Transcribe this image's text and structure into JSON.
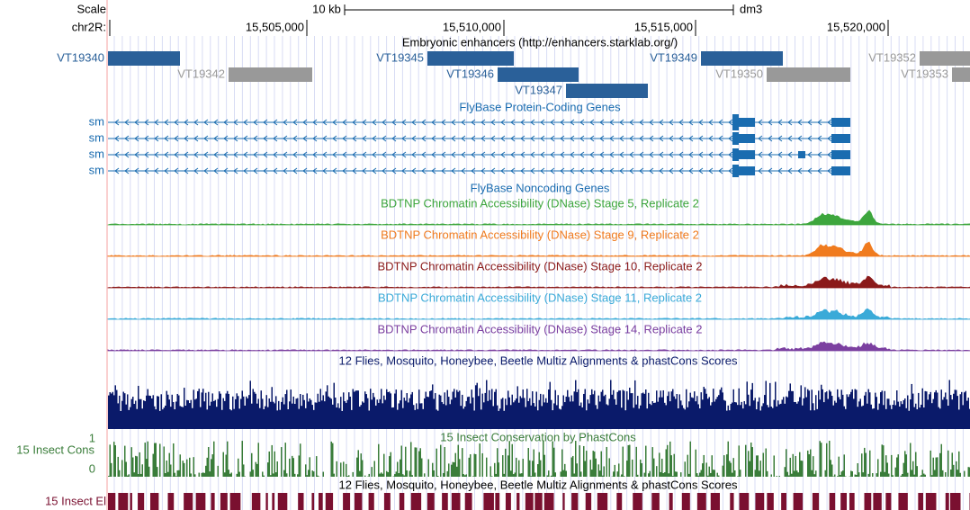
{
  "ruler": {
    "scale_label": "Scale",
    "chrom_label": "chr2R:",
    "scale_bar_label": "10 kb",
    "assembly": "dm3",
    "positions": [
      "15,505,000",
      "15,510,000",
      "15,515,000",
      "15,520,000"
    ]
  },
  "enhancers": {
    "title": "Embryonic enhancers (http://enhancers.starklab.org/)",
    "items": [
      {
        "label": "VT19340",
        "status": "blue"
      },
      {
        "label": "VT19342",
        "status": "gray"
      },
      {
        "label": "VT19345",
        "status": "blue"
      },
      {
        "label": "VT19346",
        "status": "blue"
      },
      {
        "label": "VT19347",
        "status": "blue"
      },
      {
        "label": "VT19349",
        "status": "blue"
      },
      {
        "label": "VT19350",
        "status": "gray"
      },
      {
        "label": "VT19352",
        "status": "gray"
      },
      {
        "label": "VT19353",
        "status": "gray"
      }
    ]
  },
  "coding_genes": {
    "title": "FlyBase Protein-Coding Genes",
    "transcripts": [
      "sm",
      "sm",
      "sm",
      "sm"
    ]
  },
  "noncoding_genes": {
    "title": "FlyBase Noncoding Genes"
  },
  "dnase_tracks": [
    {
      "title": "BDTNP Chromatin Accessibility (DNase) Stage 5, Replicate 2",
      "color": "#3da63d"
    },
    {
      "title": "BDTNP Chromatin Accessibility (DNase) Stage 9, Replicate 2",
      "color": "#f07b1e"
    },
    {
      "title": "BDTNP Chromatin Accessibility (DNase) Stage 10, Replicate 2",
      "color": "#8b1a1a"
    },
    {
      "title": "BDTNP Chromatin Accessibility (DNase) Stage 11, Replicate 2",
      "color": "#3aaad8"
    },
    {
      "title": "BDTNP Chromatin Accessibility (DNase) Stage 14, Replicate 2",
      "color": "#7b3fa0"
    }
  ],
  "multiz": {
    "title": "12 Flies, Mosquito, Honeybee, Beetle Multiz Alignments & phastCons Scores"
  },
  "conservation": {
    "title": "15 Insect Conservation by PhastCons",
    "side_label": "15 Insect Cons",
    "axis_max": "1",
    "axis_min": "0"
  },
  "elements": {
    "title": "12 Flies, Mosquito, Honeybee, Beetle Multiz Alignments & phastCons Scores",
    "side_label": "15 Insect El"
  }
}
